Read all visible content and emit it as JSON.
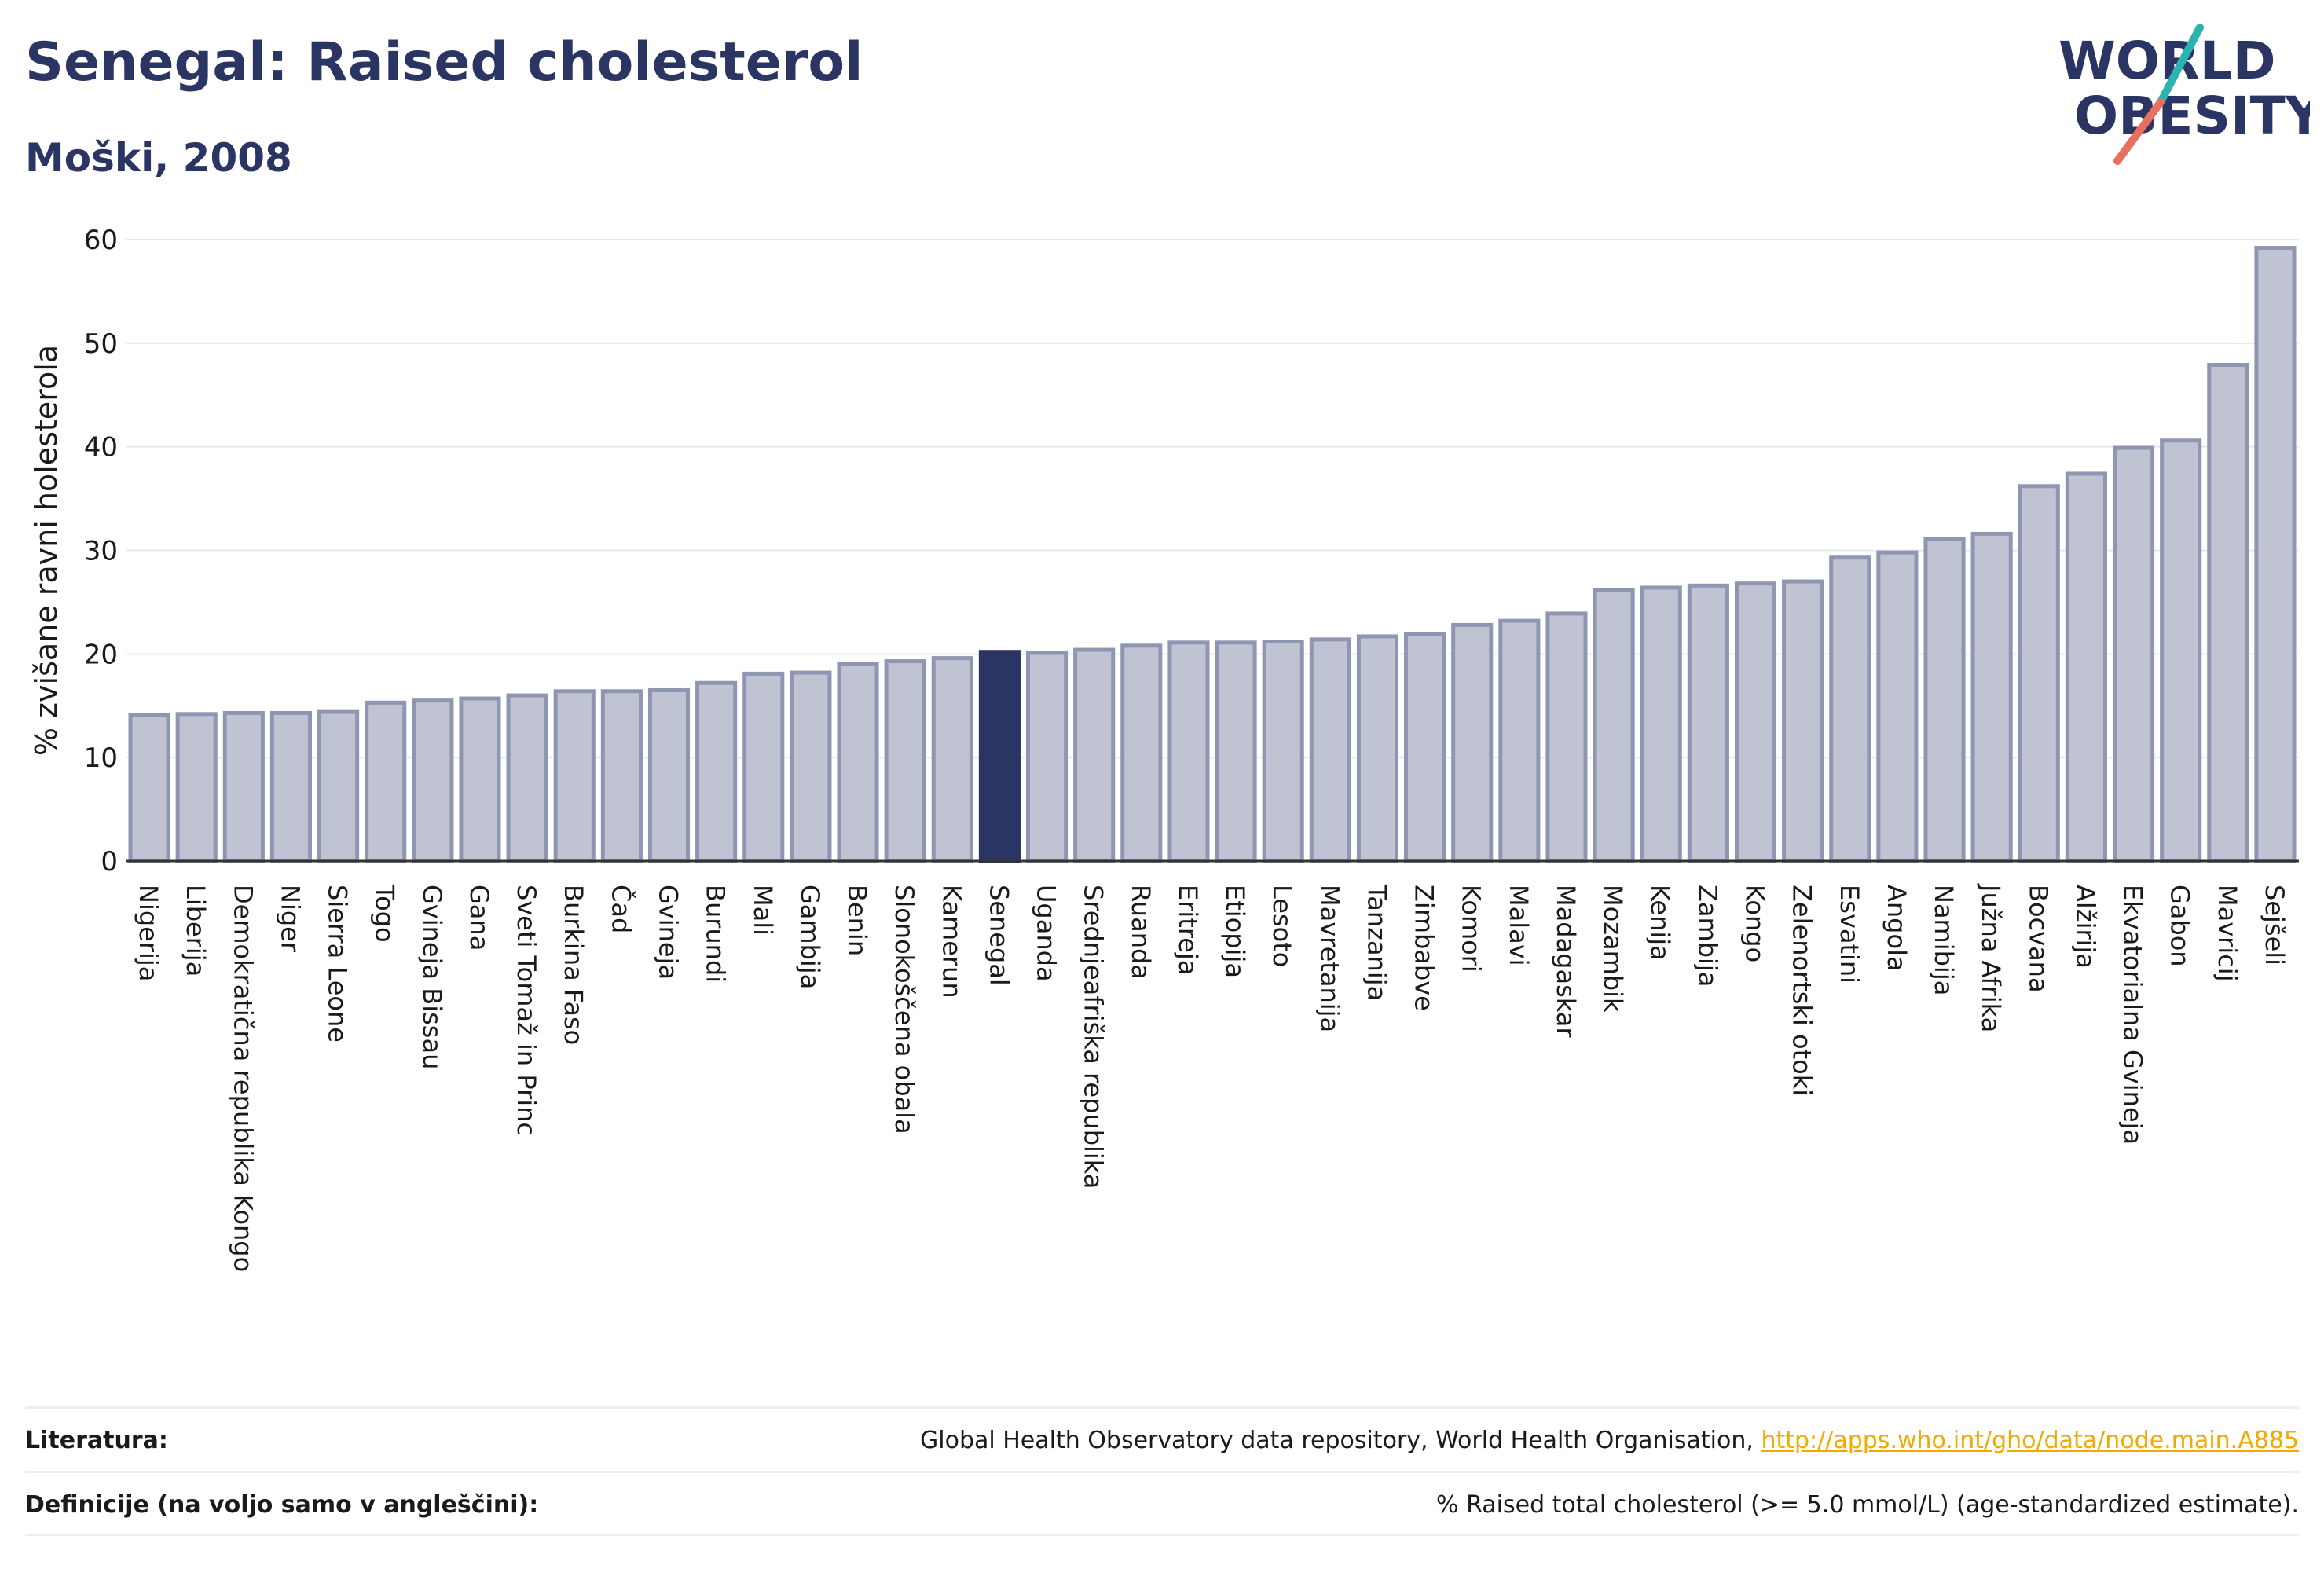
{
  "header": {
    "title": "Senegal: Raised cholesterol",
    "subtitle": "Moški, 2008"
  },
  "logo": {
    "line1": "WORLD",
    "line2": "OBESITY",
    "colors": {
      "text": "#2a3563",
      "slash_teal": "#2bb3b1",
      "slash_coral": "#e8705f"
    }
  },
  "chart_data": {
    "type": "bar",
    "ylabel": "% zvišane ravni holesterola",
    "ylim": [
      0,
      60
    ],
    "yticks": [
      0,
      10,
      20,
      30,
      40,
      50,
      60
    ],
    "grid": true,
    "highlight": "Senegal",
    "colors": {
      "bar": "#c0c4d2",
      "bar_edge": "#8e96b2",
      "highlight": "#2a3563"
    },
    "categories": [
      "Nigerija",
      "Liberija",
      "Demokratična republika Kongo",
      "Niger",
      "Sierra Leone",
      "Togo",
      "Gvineja Bissau",
      "Gana",
      "Sveti Tomaž in Princ",
      "Burkina Faso",
      "Čad",
      "Gvineja",
      "Burundi",
      "Mali",
      "Gambija",
      "Benin",
      "Slonokoščena obala",
      "Kamerun",
      "Senegal",
      "Uganda",
      "Srednjeafriška republika",
      "Ruanda",
      "Eritreja",
      "Etiopija",
      "Lesoto",
      "Mavretanija",
      "Tanzanija",
      "Zimbabve",
      "Komori",
      "Malavi",
      "Madagaskar",
      "Mozambik",
      "Kenija",
      "Zambija",
      "Kongo",
      "Zelenortski otoki",
      "Esvatini",
      "Angola",
      "Namibija",
      "Južna Afrika",
      "Bocvana",
      "Alžirija",
      "Ekvatorialna Gvineja",
      "Gabon",
      "Mavricij",
      "Sejšeli"
    ],
    "values": [
      14.1,
      14.2,
      14.3,
      14.3,
      14.4,
      15.3,
      15.5,
      15.7,
      16.0,
      16.4,
      16.4,
      16.5,
      17.2,
      18.1,
      18.2,
      19.0,
      19.3,
      19.6,
      20.2,
      20.1,
      20.4,
      20.8,
      21.1,
      21.1,
      21.2,
      21.4,
      21.7,
      21.9,
      22.8,
      23.2,
      23.9,
      26.2,
      26.4,
      26.6,
      26.8,
      27.0,
      29.3,
      29.8,
      31.1,
      31.6,
      36.2,
      37.4,
      39.9,
      40.6,
      47.9,
      59.2
    ]
  },
  "footer": {
    "literature_label": "Literatura:",
    "literature_text": "Global Health Observatory data repository, World Health Organisation, ",
    "literature_link": "http://apps.who.int/gho/data/node.main.A885",
    "definition_label": "Definicije (na voljo samo v angleščini):",
    "definition_text": "% Raised total cholesterol (>= 5.0 mmol/L) (age-standardized estimate)."
  }
}
